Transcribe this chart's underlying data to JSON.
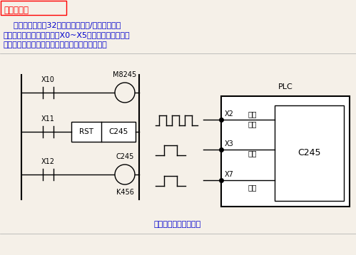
{
  "title_text": "编程软元件",
  "title_color": "#FF0000",
  "body_text_color": "#0000CD",
  "bg_color": "#F5F0E8",
  "para1_line1": "    高速计数器也是32位停电保持型增/减计数器，但",
  "para1_line2": "它们只对特定的输入端子（X0~X5）的脉冲进行计数。",
  "para1_line3": "高速计数器采用终端方式处理，与扫描周期无关。",
  "bottom_label": "单相单输入高速计数器",
  "plc_label": "PLC",
  "c245_label": "C245",
  "rst_label": "RST",
  "c245_rst_label": "C245",
  "m8245_label": "M8245",
  "k456_label": "K456",
  "x10_label": "X10",
  "x11_label": "X11",
  "x12_label": "X12",
  "x2_label": "X2",
  "x3_label": "X3",
  "x7_label": "X7",
  "gaos_label": "高速",
  "maich_label": "脉冲",
  "fuw_label": "复位",
  "qid_label": "启动"
}
